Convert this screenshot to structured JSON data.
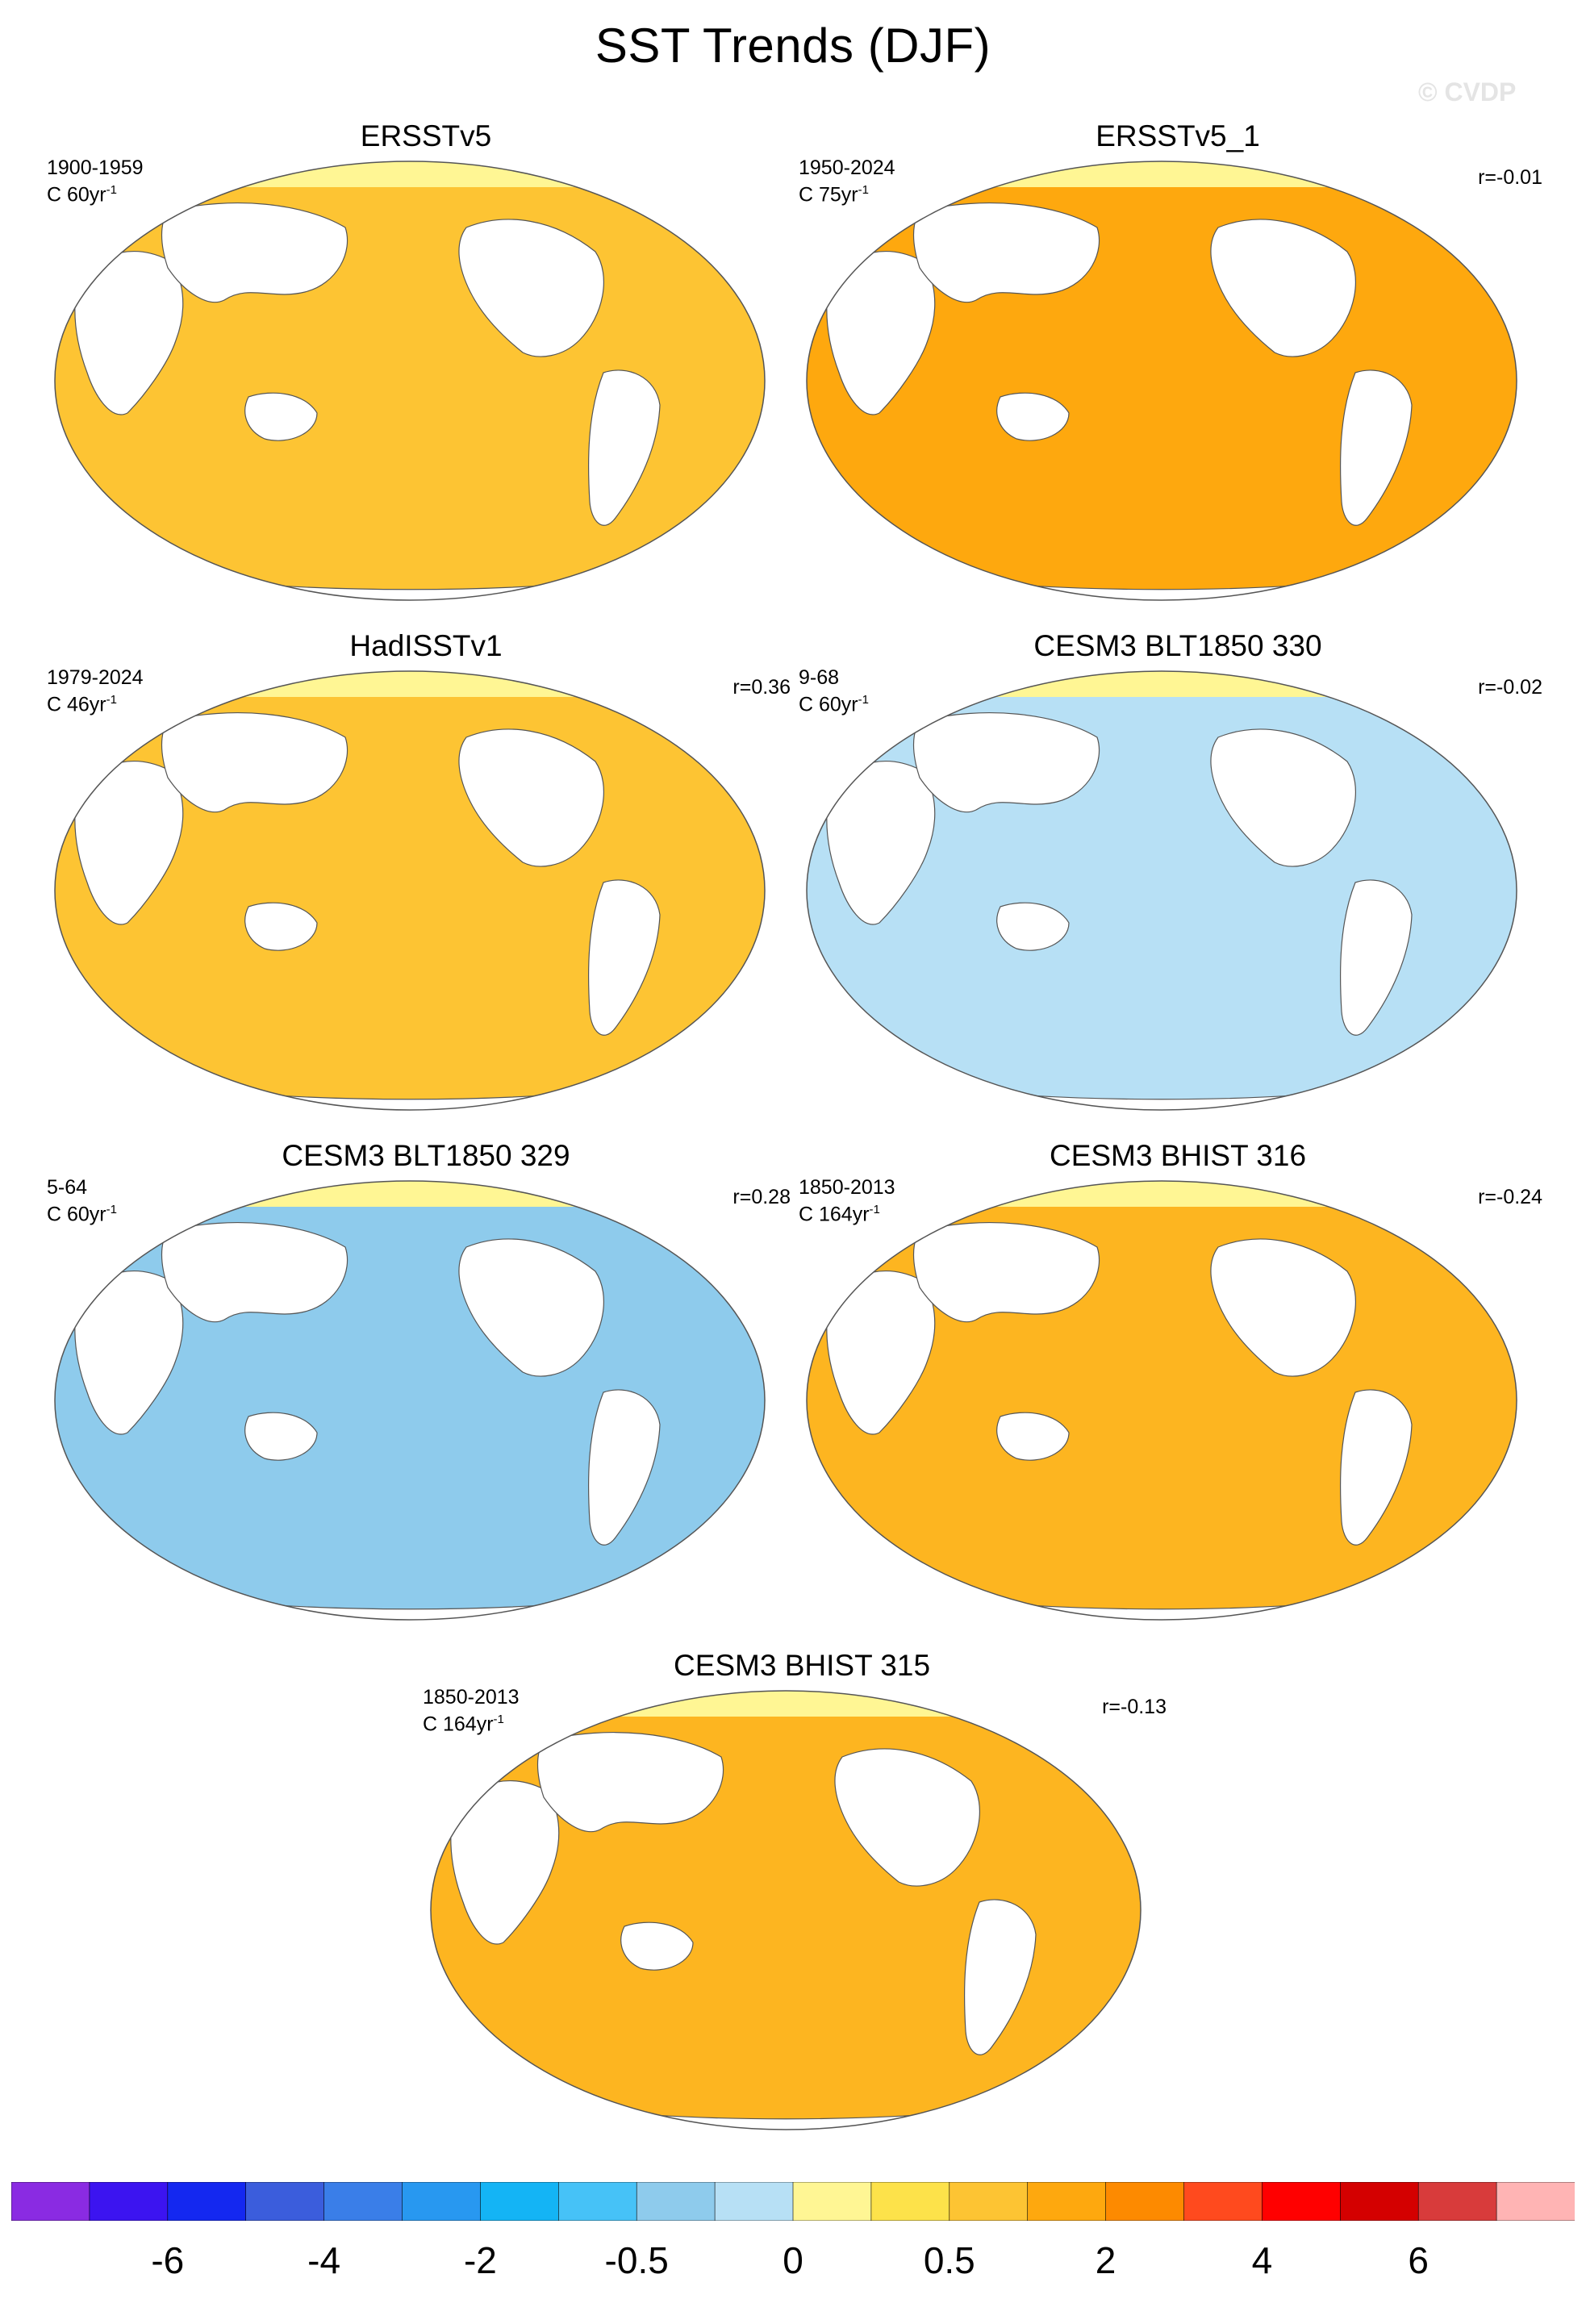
{
  "title": "SST Trends (DJF)",
  "watermark": "© CVDP",
  "panels": [
    {
      "title": "ERSSTv5",
      "period": "1900-1959",
      "units_base": "C 60yr",
      "units_exp": "-1",
      "corr": "",
      "colors": {
        "ocean": "#fdc433",
        "poles": "#fff694"
      }
    },
    {
      "title": "ERSSTv5_1",
      "period": "1950-2024",
      "units_base": "C 75yr",
      "units_exp": "-1",
      "corr": "r=-0.01",
      "colors": {
        "ocean": "#fea80e",
        "poles": "#fff694"
      }
    },
    {
      "title": "HadISSTv1",
      "period": "1979-2024",
      "units_base": "C 46yr",
      "units_exp": "-1",
      "corr": "r=0.36",
      "colors": {
        "ocean": "#fdc433",
        "poles": "#fff694"
      }
    },
    {
      "title": "CESM3 BLT1850 330",
      "period": "9-68",
      "units_base": "C 60yr",
      "units_exp": "-1",
      "corr": "r=-0.02",
      "colors": {
        "ocean": "#b7e0f5",
        "poles": "#fff694"
      }
    },
    {
      "title": "CESM3 BLT1850 329",
      "period": "5-64",
      "units_base": "C 60yr",
      "units_exp": "-1",
      "corr": "r=0.28",
      "colors": {
        "ocean": "#8ecbec",
        "poles": "#fff694"
      }
    },
    {
      "title": "CESM3 BHIST 316",
      "period": "1850-2013",
      "units_base": "C 164yr",
      "units_exp": "-1",
      "corr": "r=-0.24",
      "colors": {
        "ocean": "#fdb520",
        "poles": "#fff694"
      }
    },
    {
      "title": "CESM3 BHIST 315",
      "period": "1850-2013",
      "units_base": "C 164yr",
      "units_exp": "-1",
      "corr": "r=-0.13",
      "colors": {
        "ocean": "#fdb520",
        "poles": "#fff694"
      }
    }
  ],
  "colorbar": {
    "colors": [
      "#8a2be2",
      "#3c14f0",
      "#1428f0",
      "#3b5ddc",
      "#3a7ee8",
      "#2898f0",
      "#14b4f5",
      "#46c2f7",
      "#8ecbec",
      "#b7e0f5",
      "#fff694",
      "#fde24a",
      "#fdc433",
      "#fea80e",
      "#fd8a00",
      "#ff4a1e",
      "#ff0000",
      "#d40000",
      "#d83b3b",
      "#ffb4b4"
    ],
    "labels": [
      "-6",
      "-4",
      "-2",
      "-0.5",
      "0",
      "0.5",
      "2",
      "4",
      "6"
    ]
  }
}
